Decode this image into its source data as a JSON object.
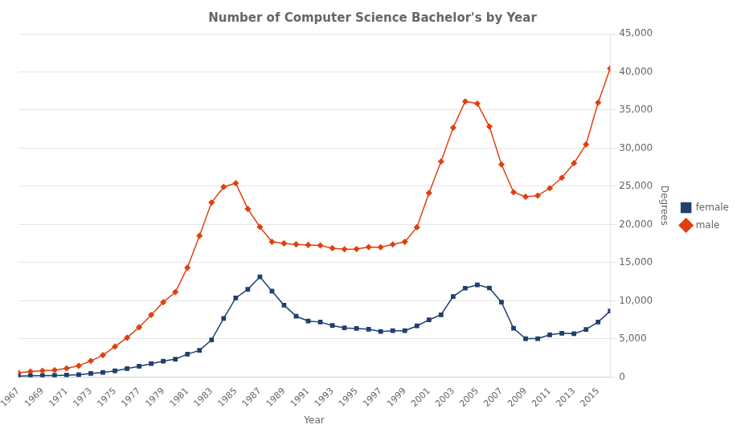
{
  "chart_data": {
    "type": "line",
    "title": "Number of Computer Science Bachelor's by Year",
    "x_label": "Year",
    "y_label": "Degrees",
    "x": [
      1967,
      1968,
      1969,
      1970,
      1971,
      1972,
      1973,
      1974,
      1975,
      1976,
      1977,
      1978,
      1979,
      1980,
      1981,
      1982,
      1983,
      1984,
      1985,
      1986,
      1987,
      1988,
      1989,
      1990,
      1991,
      1992,
      1993,
      1994,
      1995,
      1996,
      1997,
      1998,
      1999,
      2000,
      2001,
      2002,
      2003,
      2004,
      2005,
      2006,
      2007,
      2008,
      2009,
      2010,
      2011,
      2012,
      2013,
      2014,
      2015,
      2016
    ],
    "series": [
      {
        "name": "female",
        "color": "#1f3f6e",
        "marker": "square",
        "values": [
          136,
          170,
          196,
          213,
          261,
          317,
          481,
          625,
          822,
          1121,
          1425,
          1767,
          2098,
          2364,
          3009,
          3506,
          4878,
          7693,
          10376,
          11512,
          13147,
          11272,
          9433,
          7994,
          7348,
          7222,
          6770,
          6449,
          6371,
          6281,
          5972,
          6082,
          6089,
          6714,
          7503,
          8180,
          10572,
          11656,
          12096,
          11682,
          9824,
          6395,
          5038,
          5048,
          5541,
          5760,
          5695,
          6243,
          7227,
          8671
        ]
      },
      {
        "name": "male",
        "color": "#e04010",
        "marker": "diamond",
        "values": [
          586,
          725,
          839,
          912,
          1154,
          1489,
          2123,
          2880,
          4006,
          5165,
          6532,
          8154,
          9824,
          11154,
          14350,
          18532,
          22882,
          24928,
          25418,
          22044,
          19679,
          17736,
          17537,
          17405,
          17323,
          17261,
          16902,
          16765,
          16782,
          17049,
          17027,
          17390,
          17726,
          19643,
          24124,
          28267,
          32681,
          36136,
          35845,
          32836,
          27869,
          24241,
          23641,
          23793,
          24760,
          26135,
          28032,
          30495,
          35967,
          40438
        ]
      }
    ],
    "xlim": [
      1967,
      2016
    ],
    "xticks": [
      1967,
      1969,
      1971,
      1973,
      1975,
      1977,
      1979,
      1981,
      1983,
      1985,
      1987,
      1989,
      1991,
      1993,
      1995,
      1997,
      1999,
      2001,
      2003,
      2005,
      2007,
      2009,
      2011,
      2013,
      2015
    ],
    "ylim": [
      0,
      45000
    ],
    "yticks": [
      0,
      {
        "value": 5000,
        "label": "5,000"
      },
      {
        "value": 10000,
        "label": "10,000"
      },
      {
        "value": 15000,
        "label": "15,000"
      },
      {
        "value": 20000,
        "label": "20,000"
      },
      {
        "value": 25000,
        "label": "25,000"
      },
      {
        "value": 30000,
        "label": "30,000"
      },
      {
        "value": 35000,
        "label": "35,000"
      },
      {
        "value": 40000,
        "label": "40,000"
      },
      {
        "value": 45000,
        "label": "45,000"
      }
    ],
    "grid": "y",
    "legend": "right"
  }
}
